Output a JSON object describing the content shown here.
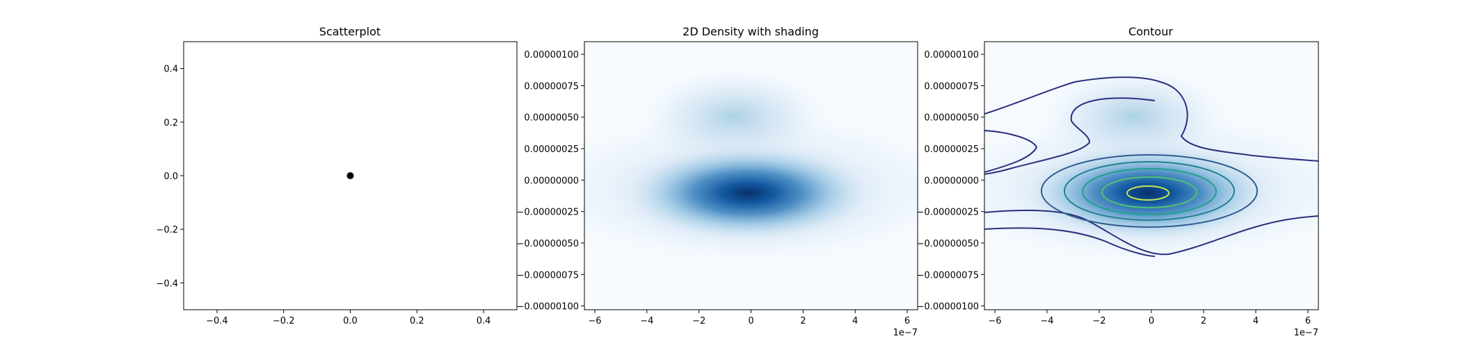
{
  "chart_data": [
    {
      "type": "scatter",
      "title": "Scatterplot",
      "xlabel": "",
      "ylabel": "",
      "xlim": [
        -0.5,
        0.5
      ],
      "ylim": [
        -0.5,
        0.5
      ],
      "xticks": [
        -0.4,
        -0.2,
        0.0,
        0.2,
        0.4
      ],
      "xtick_labels": [
        "−0.4",
        "−0.2",
        "0.0",
        "0.2",
        "0.4"
      ],
      "yticks": [
        -0.4,
        -0.2,
        0.0,
        0.2,
        0.4
      ],
      "ytick_labels": [
        "−0.4",
        "−0.2",
        "0.0",
        "0.2",
        "0.4"
      ],
      "points": [
        {
          "x": 0.0,
          "y": 0.0
        }
      ],
      "point_color": "#000000",
      "grid": false
    },
    {
      "type": "heatmap",
      "title": "2D Density with shading",
      "xlabel": "",
      "ylabel": "",
      "xlim": [
        -6.4e-07,
        6.4e-07
      ],
      "ylim": [
        -1.03e-06,
        1.1e-06
      ],
      "xticks": [
        -6e-07,
        -4e-07,
        -2e-07,
        0,
        2e-07,
        4e-07,
        6e-07
      ],
      "xtick_labels": [
        "−6",
        "−4",
        "−2",
        "0",
        "2",
        "4",
        "6"
      ],
      "x_offset_label": "1e−7",
      "yticks": [
        1e-06,
        7.5e-07,
        5e-07,
        2.5e-07,
        0,
        -2.5e-07,
        -5e-07,
        -7.5e-07,
        -1e-06
      ],
      "ytick_labels": [
        "0.00000100",
        "0.00000075",
        "0.00000050",
        "0.00000025",
        "0.00000000",
        "−0.00000025",
        "−0.00000050",
        "−0.00000075",
        "−0.00000100"
      ],
      "colormap": "Blues",
      "density_peaks": [
        {
          "x": -2e-08,
          "y": -1e-07,
          "weight": 1.0
        },
        {
          "x": -1e-07,
          "y": 5e-07,
          "weight": 0.3
        }
      ],
      "grid": false
    },
    {
      "type": "heatmap",
      "title": "Contour",
      "xlabel": "",
      "ylabel": "",
      "xlim": [
        -6.4e-07,
        6.4e-07
      ],
      "ylim": [
        -1.03e-06,
        1.1e-06
      ],
      "xticks": [
        -6e-07,
        -4e-07,
        -2e-07,
        0,
        2e-07,
        4e-07,
        6e-07
      ],
      "xtick_labels": [
        "−6",
        "−4",
        "−2",
        "0",
        "2",
        "4",
        "6"
      ],
      "x_offset_label": "1e−7",
      "yticks": [
        1e-06,
        7.5e-07,
        5e-07,
        2.5e-07,
        0,
        -2.5e-07,
        -5e-07,
        -7.5e-07,
        -1e-06
      ],
      "ytick_labels": [
        "0.00000100",
        "0.00000075",
        "0.00000050",
        "0.00000025",
        "0.00000000",
        "−0.00000025",
        "−0.00000050",
        "−0.00000075",
        "−0.00000100"
      ],
      "colormap": "Blues",
      "contour_colormap": "viridis",
      "contour_colors": [
        "#2b2f7e",
        "#2f5b8f",
        "#24808e",
        "#1fa187",
        "#4fc370",
        "#c7e84f"
      ],
      "grid": false
    }
  ]
}
